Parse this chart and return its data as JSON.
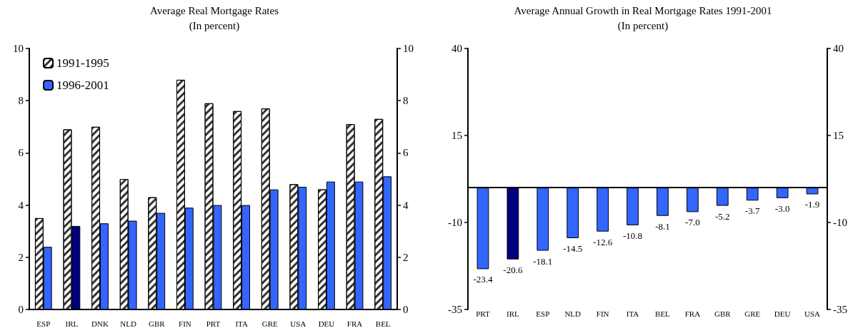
{
  "chart_data": [
    {
      "type": "bar",
      "title": "Average Real Mortgage Rates",
      "subtitle": "(In percent)",
      "categories": [
        "ESP",
        "IRL",
        "DNK",
        "NLD",
        "GBR",
        "FIN",
        "PRT",
        "ITA",
        "GRE",
        "USA",
        "DEU",
        "FRA",
        "BEL"
      ],
      "series": [
        {
          "name": "1991-1995",
          "color": "#ffffff",
          "values": [
            3.5,
            6.9,
            7.0,
            5.0,
            4.3,
            8.8,
            7.9,
            7.6,
            7.7,
            4.8,
            4.6,
            7.1,
            7.3
          ]
        },
        {
          "name": "1996-2001",
          "color": "#3366ff",
          "colors": [
            "#3366ff",
            "#000080",
            "#3366ff",
            "#3366ff",
            "#3366ff",
            "#3366ff",
            "#3366ff",
            "#3366ff",
            "#3366ff",
            "#3366ff",
            "#3366ff",
            "#3366ff",
            "#3366ff"
          ],
          "values": [
            2.4,
            3.2,
            3.3,
            3.4,
            3.7,
            3.9,
            4.0,
            4.0,
            4.6,
            4.7,
            4.9,
            4.9,
            5.1
          ]
        }
      ],
      "ylim": [
        0,
        10
      ],
      "yticks": [
        0,
        2,
        4,
        6,
        8,
        10
      ],
      "y2lim": [
        0,
        10
      ],
      "y2ticks": [
        0,
        2,
        4,
        6,
        8,
        10
      ],
      "grid": false,
      "legend": "top left"
    },
    {
      "type": "bar",
      "title": "Average Annual Growth in Real Mortgage Rates 1991-2001",
      "subtitle": "(In percent)",
      "categories": [
        "PRT",
        "IRL",
        "ESP",
        "NLD",
        "FIN",
        "ITA",
        "BEL",
        "FRA",
        "GBR",
        "GRE",
        "DEU",
        "USA"
      ],
      "series": [
        {
          "color": "#3366ff",
          "colors": [
            "#3366ff",
            "#000080",
            "#3366ff",
            "#3366ff",
            "#3366ff",
            "#3366ff",
            "#3366ff",
            "#3366ff",
            "#3366ff",
            "#3366ff",
            "#3366ff",
            "#3366ff"
          ],
          "values": [
            -23.4,
            -20.6,
            -18.1,
            -14.5,
            -12.6,
            -10.8,
            -8.1,
            -7.0,
            -5.2,
            -3.7,
            -3.0,
            -1.9
          ],
          "value_labels": [
            "-23.4",
            "-20.6",
            "-18.1",
            "-14.5",
            "-12.6",
            "-10.8",
            "-8.1",
            "-7.0",
            "-5.2",
            "-3.7",
            "-3.0",
            "-1.9"
          ]
        }
      ],
      "ylim": [
        -35,
        40
      ],
      "yticks": [
        -35,
        -10,
        15,
        40
      ],
      "y2lim": [
        -35,
        40
      ],
      "y2ticks": [
        -35,
        -10,
        15,
        40
      ],
      "grid": false,
      "legend": false
    }
  ]
}
